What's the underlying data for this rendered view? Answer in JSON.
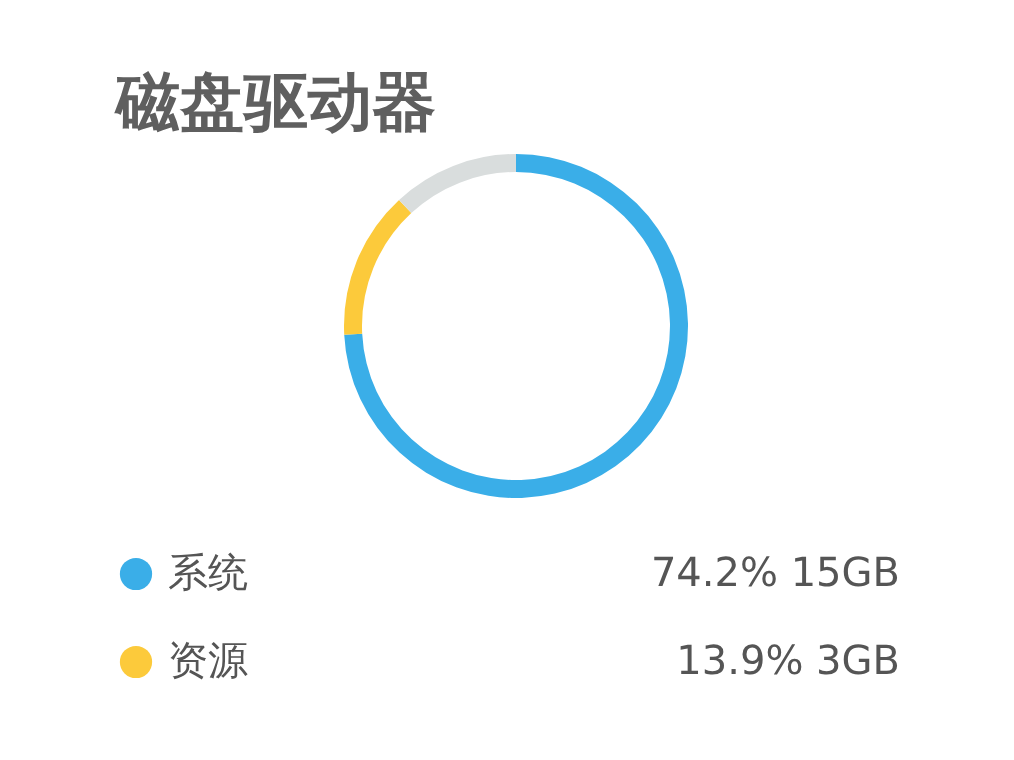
{
  "chart_data": {
    "type": "donut",
    "title": "磁盘驱动器",
    "categories": [
      "系统",
      "资源",
      null
    ],
    "values": [
      74.2,
      13.9,
      11.9
    ],
    "colors": [
      "#3aaee8",
      "#fcca3b",
      "#d9dddd"
    ],
    "value_labels": [
      "74.2% 15GB",
      "13.9% 3GB",
      null
    ],
    "legend": "bottom"
  }
}
